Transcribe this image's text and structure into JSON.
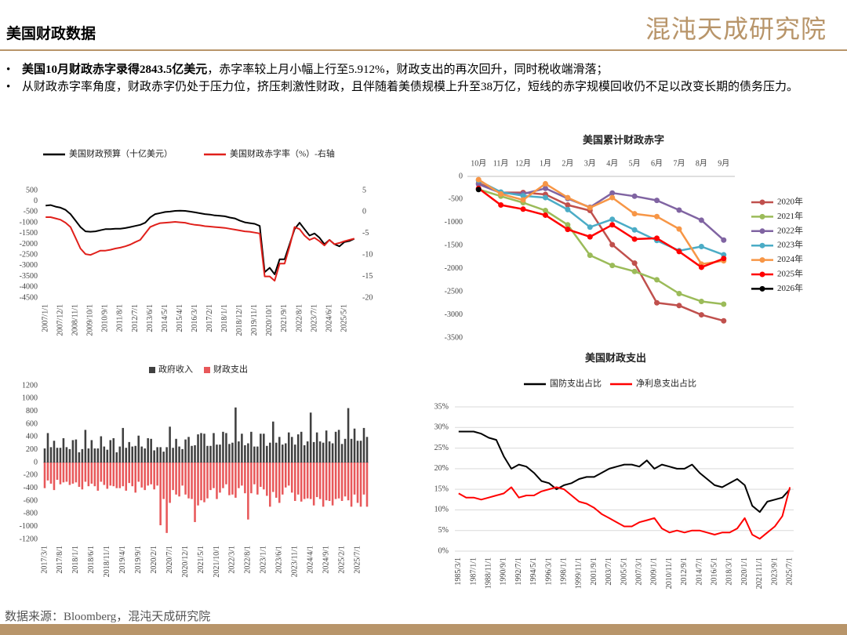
{
  "header": {
    "title": "美国财政数据",
    "logo": "混沌天成研究院"
  },
  "bullets": [
    {
      "bold": "美国10月财政赤字录得2843.5亿美元",
      "text": "，赤字率较上月小幅上行至5.912%，财政支出的再次回升，同时税收端滑落；"
    },
    {
      "text": "从财政赤字率角度，财政赤字仍处于压力位，挤压刺激性财政，且伴随着美债规模上升至38万亿，短线的赤字规模回收仍不足以改变长期的债务压力。"
    }
  ],
  "source": "数据来源：Bloomberg，混沌天成研究院",
  "chart_data": [
    {
      "type": "line",
      "categories": [
        "2007/1/1",
        null,
        null,
        "2007/12/1",
        null,
        null,
        "2008/11/1",
        null,
        null,
        "2009/10/1",
        null,
        null,
        "2010/9/1",
        null,
        null,
        "2011/8/1",
        null,
        null,
        "2012/7/1",
        null,
        null,
        "2013/6/1",
        null,
        null,
        "2014/5/1",
        null,
        null,
        "2015/4/1",
        null,
        null,
        "2016/3/1",
        null,
        null,
        "2017/2/1",
        null,
        null,
        "2018/1/1",
        null,
        null,
        "2018/12/1",
        null,
        null,
        "2019/11/1",
        null,
        null,
        "2020/10/1",
        null,
        null,
        "2021/9/1",
        null,
        null,
        "2022/8/1",
        null,
        null,
        "2023/7/1",
        null,
        null,
        "2024/6/1",
        null,
        null,
        "2025/5/1",
        null,
        null
      ],
      "series": [
        {
          "name": "美国财政预算（十亿美元）",
          "color": "#000000",
          "values": [
            -200,
            -180,
            -250,
            -300,
            -400,
            -600,
            -900,
            -1200,
            -1400,
            -1420,
            -1400,
            -1350,
            -1300,
            -1300,
            -1280,
            -1280,
            -1250,
            -1200,
            -1150,
            -1100,
            -1000,
            -750,
            -600,
            -550,
            -500,
            -480,
            -450,
            -440,
            -450,
            -480,
            -520,
            -560,
            -600,
            -620,
            -660,
            -680,
            -700,
            -760,
            -800,
            -900,
            -980,
            -1020,
            -1050,
            -1150,
            -3300,
            -3100,
            -3400,
            -2700,
            -2700,
            -2000,
            -1300,
            -1000,
            -1300,
            -1600,
            -1500,
            -1700,
            -2000,
            -1800,
            -2000,
            -2100,
            -1900,
            -1850,
            -1750
          ]
        },
        {
          "name": "美国财政赤字率（%）-右轴",
          "color": "#e0201b",
          "axis": "y2",
          "values": [
            -1.2,
            -1.2,
            -1.5,
            -1.8,
            -2.5,
            -3.5,
            -6,
            -8.5,
            -9.8,
            -10,
            -9.5,
            -9,
            -9,
            -8.8,
            -8.5,
            -8.3,
            -8,
            -7.6,
            -7,
            -6.5,
            -5,
            -3.5,
            -3,
            -2.6,
            -2.5,
            -2.4,
            -2.3,
            -2.4,
            -2.5,
            -2.8,
            -3,
            -3.1,
            -3.3,
            -3.4,
            -3.5,
            -3.6,
            -3.7,
            -3.9,
            -4.1,
            -4.3,
            -4.5,
            -4.6,
            -4.8,
            -5,
            -15,
            -15,
            -16,
            -12,
            -12,
            -8,
            -3.5,
            -4,
            -5.5,
            -6.5,
            -6,
            -6.8,
            -7.8,
            -6.5,
            -7.5,
            -7.2,
            -6.8,
            -6.5,
            -6.2
          ]
        }
      ],
      "ylim": [
        -4500,
        500
      ],
      "yticks": [
        -4500,
        -4000,
        -3500,
        -3000,
        -2500,
        -2000,
        -1500,
        -1000,
        -500,
        0,
        500
      ],
      "y2lim": [
        -20,
        5
      ],
      "y2ticks": [
        -20,
        -15,
        -10,
        -5,
        0,
        5
      ],
      "grid": false,
      "legend": "top"
    },
    {
      "type": "line",
      "title": "美国累计财政赤字",
      "markers": true,
      "categories": [
        "10月",
        "11月",
        "12月",
        "1月",
        "2月",
        "3月",
        "4月",
        "5月",
        "6月",
        "7月",
        "8月",
        "9月"
      ],
      "series": [
        {
          "name": "2020年",
          "color": "#c0504d",
          "values": [
            -150,
            -350,
            -350,
            -390,
            -620,
            -740,
            -1480,
            -1880,
            -2740,
            -2800,
            -3000,
            -3130
          ]
        },
        {
          "name": "2021年",
          "color": "#9bbb59",
          "values": [
            -280,
            -430,
            -570,
            -740,
            -1050,
            -1710,
            -1930,
            -2060,
            -2240,
            -2540,
            -2710,
            -2770
          ]
        },
        {
          "name": "2022年",
          "color": "#8064a2",
          "values": [
            -170,
            -360,
            -380,
            -260,
            -480,
            -670,
            -360,
            -430,
            -520,
            -730,
            -950,
            -1380
          ]
        },
        {
          "name": "2023年",
          "color": "#4bacc6",
          "values": [
            -90,
            -340,
            -420,
            -460,
            -720,
            -1100,
            -930,
            -1160,
            -1390,
            -1610,
            -1520,
            -1700
          ]
        },
        {
          "name": "2024年",
          "color": "#f79646",
          "values": [
            -70,
            -380,
            -510,
            -160,
            -460,
            -680,
            -460,
            -810,
            -870,
            -1140,
            -1900,
            -1830
          ]
        },
        {
          "name": "2025年",
          "color": "#ff0000",
          "values": [
            -260,
            -620,
            -710,
            -840,
            -1150,
            -1310,
            -1050,
            -1360,
            -1340,
            -1630,
            -1970,
            -1780
          ]
        },
        {
          "name": "2026年",
          "color": "#000000",
          "values": [
            -284,
            null,
            null,
            null,
            null,
            null,
            null,
            null,
            null,
            null,
            null,
            null
          ]
        }
      ],
      "ylim": [
        -3500,
        0
      ],
      "yticks": [
        -3500,
        -3000,
        -2500,
        -2000,
        -1500,
        -1000,
        -500,
        0
      ],
      "grid": false,
      "legend": "right"
    },
    {
      "type": "bar",
      "categories": [
        "2017/3/1",
        null,
        null,
        null,
        null,
        "2017/8/1",
        null,
        null,
        null,
        null,
        "2018/1/1",
        null,
        null,
        null,
        null,
        "2018/6/1",
        null,
        null,
        null,
        null,
        "2018/11/1",
        null,
        null,
        null,
        null,
        "2019/4/1",
        null,
        null,
        null,
        null,
        "2019/9/1",
        null,
        null,
        null,
        null,
        "2020/2/1",
        null,
        null,
        null,
        null,
        "2020/7/1",
        null,
        null,
        null,
        null,
        "2020/12/1",
        null,
        null,
        null,
        null,
        "2021/5/1",
        null,
        null,
        null,
        null,
        "2021/10/1",
        null,
        null,
        null,
        null,
        "2022/3/1",
        null,
        null,
        null,
        null,
        "2022/8/1",
        null,
        null,
        null,
        null,
        "2023/1/1",
        null,
        null,
        null,
        null,
        "2023/6/1",
        null,
        null,
        null,
        null,
        "2023/11/1",
        null,
        null,
        null,
        null,
        "2024/4/1",
        null,
        null,
        null,
        null,
        "2024/9/1",
        null,
        null,
        null,
        null,
        "2025/2/1",
        null,
        null,
        null,
        null,
        "2025/7/1",
        null,
        null,
        null
      ],
      "series": [
        {
          "name": "政府收入",
          "color": "#404040",
          "values": [
            220,
            460,
            240,
            340,
            230,
            230,
            380,
            240,
            210,
            350,
            360,
            160,
            210,
            510,
            220,
            350,
            220,
            220,
            410,
            250,
            200,
            350,
            380,
            160,
            250,
            540,
            230,
            320,
            250,
            260,
            420,
            250,
            220,
            380,
            370,
            190,
            240,
            240,
            170,
            240,
            560,
            230,
            370,
            250,
            210,
            360,
            400,
            260,
            270,
            440,
            460,
            450,
            260,
            260,
            460,
            280,
            280,
            480,
            460,
            290,
            310,
            860,
            330,
            450,
            270,
            300,
            480,
            250,
            250,
            450,
            450,
            260,
            310,
            640,
            310,
            400,
            280,
            300,
            470,
            400,
            280,
            440,
            480,
            270,
            330,
            780,
            320,
            470,
            330,
            310,
            500,
            330,
            300,
            480,
            510,
            290,
            370,
            850,
            370,
            530,
            340,
            340,
            540,
            400
          ]
        },
        {
          "name": "财政支出",
          "color": "#e8585a",
          "values": [
            -400,
            -280,
            -330,
            -430,
            -270,
            -340,
            -310,
            -300,
            -350,
            -330,
            -310,
            -380,
            -420,
            -300,
            -370,
            -330,
            -370,
            -440,
            -300,
            -350,
            -410,
            -360,
            -370,
            -400,
            -400,
            -370,
            -440,
            -320,
            -370,
            -470,
            -300,
            -390,
            -430,
            -360,
            -340,
            -420,
            -360,
            -980,
            -570,
            -1100,
            -630,
            -430,
            -500,
            -530,
            -360,
            -500,
            -560,
            -570,
            -930,
            -670,
            -590,
            -620,
            -560,
            -430,
            -400,
            -570,
            -470,
            -400,
            -340,
            -510,
            -500,
            -550,
            -400,
            -360,
            -480,
            -890,
            -480,
            -340,
            -500,
            -380,
            -420,
            -520,
            -690,
            -460,
            -550,
            -630,
            -500,
            -390,
            -360,
            -470,
            -600,
            -500,
            -610,
            -570,
            -560,
            -570,
            -670,
            -540,
            -570,
            -690,
            -590,
            -600,
            -670,
            -570,
            -560,
            -600,
            -530,
            -590,
            -690,
            -500,
            -630,
            -690,
            -500,
            -690
          ]
        }
      ],
      "ylim": [
        -1200,
        1200
      ],
      "yticks": [
        -1200,
        -1000,
        -800,
        -600,
        -400,
        -200,
        0,
        200,
        400,
        600,
        800,
        1000,
        1200
      ],
      "grid": false,
      "legend": "top"
    },
    {
      "type": "line",
      "title": "美国财政支出",
      "categories": [
        "1985/3/1",
        null,
        "1987/1/1",
        null,
        "1988/11/1",
        null,
        "1990/9/1",
        null,
        "1992/7/1",
        null,
        "1994/5/1",
        null,
        "1996/3/1",
        null,
        "1998/1/1",
        null,
        "1999/11/1",
        null,
        "2001/9/1",
        null,
        "2003/7/1",
        null,
        "2005/5/1",
        null,
        "2007/3/1",
        null,
        "2009/1/1",
        null,
        "2010/11/1",
        null,
        "2012/9/1",
        null,
        "2014/7/1",
        null,
        "2016/5/1",
        null,
        "2018/3/1",
        null,
        "2020/1/1",
        null,
        "2021/11/1",
        null,
        "2023/9/1",
        null,
        "2025/7/1"
      ],
      "series": [
        {
          "name": "国防支出占比",
          "color": "#000000",
          "values": [
            29,
            29,
            29,
            28.5,
            27.5,
            27,
            23,
            20,
            21,
            20.5,
            19,
            17,
            16.5,
            15,
            16,
            16.5,
            17.5,
            18,
            18,
            19,
            20,
            20.5,
            21,
            21,
            20.5,
            22,
            20,
            21,
            20.5,
            20,
            20,
            21,
            19,
            17.5,
            16,
            15.5,
            16.5,
            17.5,
            16,
            11,
            9.5,
            12,
            12.5,
            13,
            15
          ]
        },
        {
          "name": "净利息支出占比",
          "color": "#ff0000",
          "values": [
            14,
            13,
            13,
            12.5,
            13,
            13.5,
            14,
            15.5,
            13,
            13.5,
            13.5,
            14.5,
            15,
            15.5,
            15,
            13.5,
            12,
            11.5,
            10.5,
            9,
            8,
            7,
            6,
            6,
            7,
            7.5,
            8,
            5.5,
            4.5,
            5,
            4.5,
            5,
            5,
            4.5,
            4,
            4.5,
            4.5,
            5.5,
            8,
            4,
            3,
            4.5,
            6,
            8.5,
            15.5
          ]
        }
      ],
      "ylim": [
        0,
        35
      ],
      "yticks": [
        {
          "value": 0,
          "label": "0%"
        },
        {
          "value": 5,
          "label": "5%"
        },
        {
          "value": 10,
          "label": "10%"
        },
        {
          "value": 15,
          "label": "15%"
        },
        {
          "value": 20,
          "label": "20%"
        },
        {
          "value": 25,
          "label": "25%"
        },
        {
          "value": 30,
          "label": "30%"
        },
        {
          "value": 35,
          "label": "35%"
        }
      ],
      "grid": true,
      "legend": "top"
    }
  ]
}
